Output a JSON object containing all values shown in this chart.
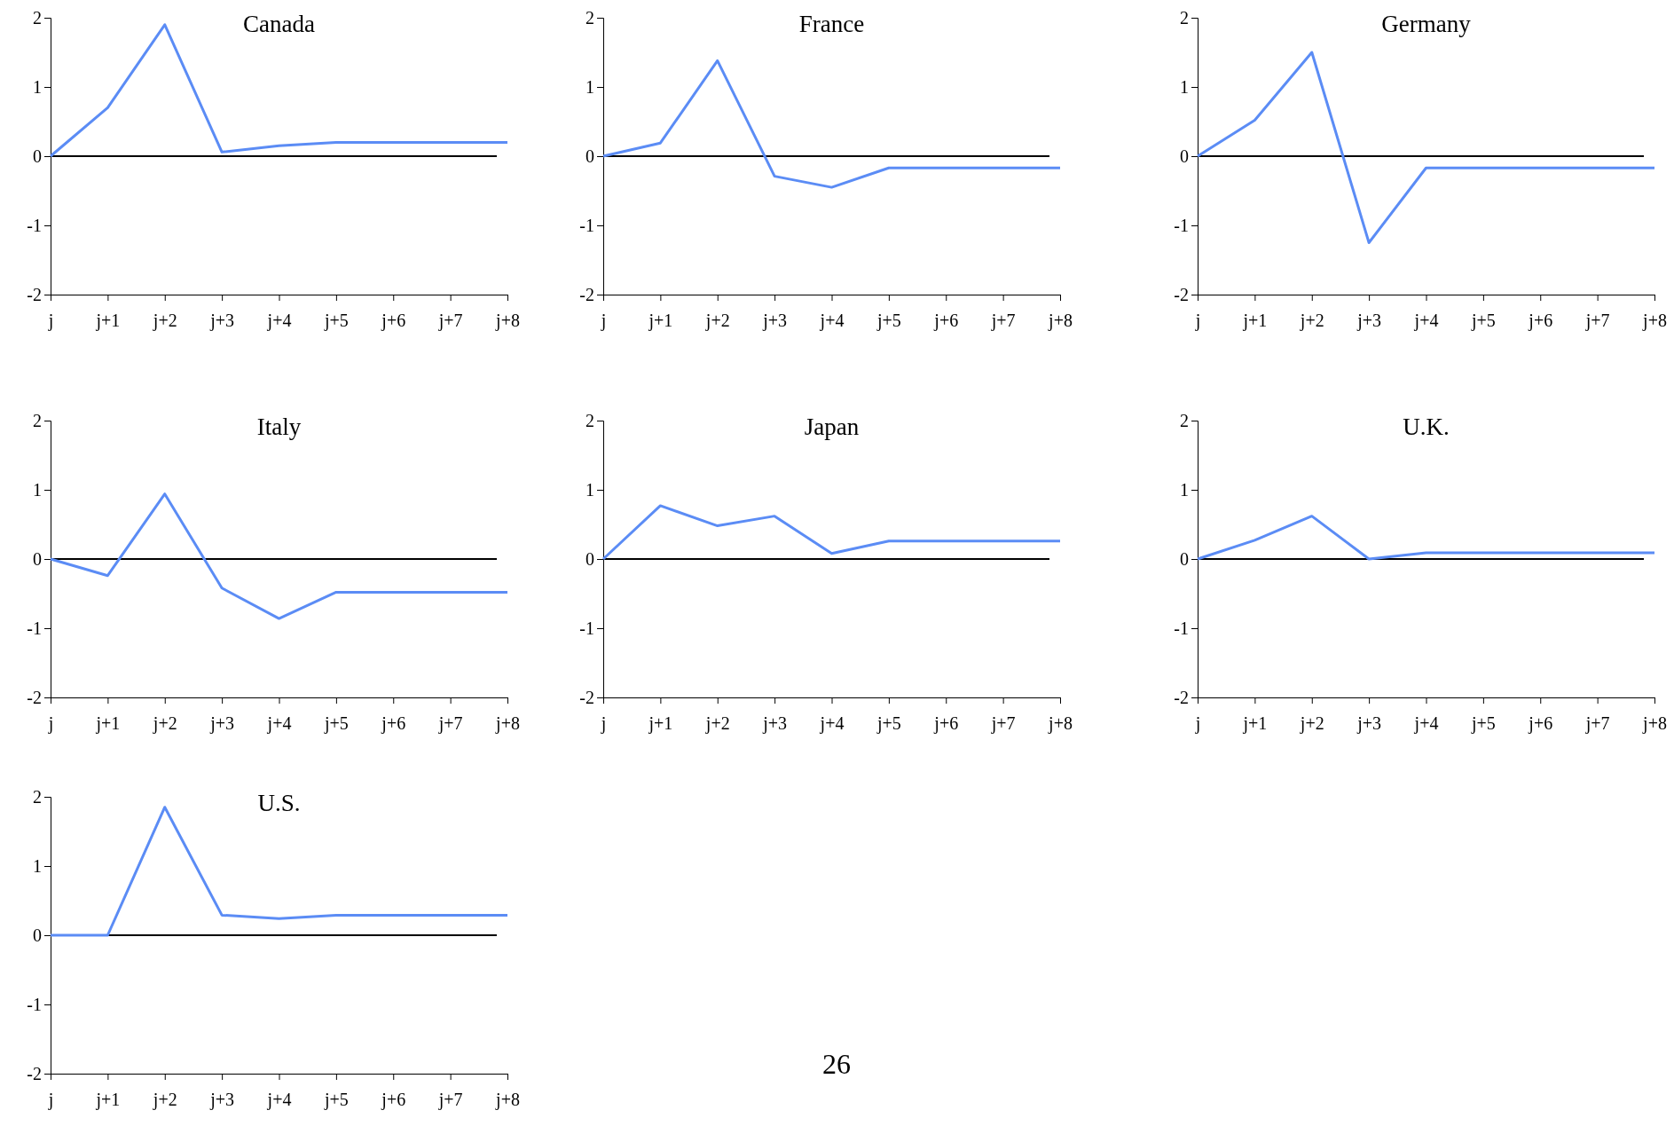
{
  "chart_data": [
    {
      "type": "line",
      "title": "Canada",
      "categories": [
        "j",
        "j+1",
        "j+2",
        "j+3",
        "j+4",
        "j+5",
        "j+6",
        "j+7",
        "j+8"
      ],
      "values": [
        0,
        0.7,
        1.9,
        0.06,
        0.15,
        0.2,
        0.2,
        0.2,
        0.2
      ],
      "color": "#5b8cf5",
      "ylim": [
        -2,
        2
      ],
      "yticks": [
        -2,
        -1,
        0,
        1,
        2
      ],
      "ref_lines": [
        {
          "axis": "y",
          "value": 0,
          "color": "#000000"
        }
      ],
      "grid": false
    },
    {
      "type": "line",
      "title": "France",
      "categories": [
        "j",
        "j+1",
        "j+2",
        "j+3",
        "j+4",
        "j+5",
        "j+6",
        "j+7",
        "j+8"
      ],
      "values": [
        0,
        0.19,
        1.38,
        -0.29,
        -0.45,
        -0.17,
        -0.17,
        -0.17,
        -0.17
      ],
      "color": "#5b8cf5",
      "ylim": [
        -2,
        2
      ],
      "yticks": [
        -2,
        -1,
        0,
        1,
        2
      ],
      "ref_lines": [
        {
          "axis": "y",
          "value": 0,
          "color": "#000000"
        }
      ],
      "grid": false
    },
    {
      "type": "line",
      "title": "Germany",
      "categories": [
        "j",
        "j+1",
        "j+2",
        "j+3",
        "j+4",
        "j+5",
        "j+6",
        "j+7",
        "j+8"
      ],
      "values": [
        0,
        0.52,
        1.5,
        -1.25,
        -0.17,
        -0.17,
        -0.17,
        -0.17,
        -0.17
      ],
      "color": "#5b8cf5",
      "ylim": [
        -2,
        2
      ],
      "yticks": [
        -2,
        -1,
        0,
        1,
        2
      ],
      "ref_lines": [
        {
          "axis": "y",
          "value": 0,
          "color": "#000000"
        }
      ],
      "grid": false
    },
    {
      "type": "line",
      "title": "Italy",
      "categories": [
        "j",
        "j+1",
        "j+2",
        "j+3",
        "j+4",
        "j+5",
        "j+6",
        "j+7",
        "j+8"
      ],
      "values": [
        0,
        -0.24,
        0.94,
        -0.42,
        -0.86,
        -0.48,
        -0.48,
        -0.48,
        -0.48
      ],
      "color": "#5b8cf5",
      "ylim": [
        -2,
        2
      ],
      "yticks": [
        -2,
        -1,
        0,
        1,
        2
      ],
      "ref_lines": [
        {
          "axis": "y",
          "value": 0,
          "color": "#000000"
        }
      ],
      "grid": false
    },
    {
      "type": "line",
      "title": "Japan",
      "categories": [
        "j",
        "j+1",
        "j+2",
        "j+3",
        "j+4",
        "j+5",
        "j+6",
        "j+7",
        "j+8"
      ],
      "values": [
        0,
        0.77,
        0.48,
        0.62,
        0.08,
        0.26,
        0.26,
        0.26,
        0.26
      ],
      "color": "#5b8cf5",
      "ylim": [
        -2,
        2
      ],
      "yticks": [
        -2,
        -1,
        0,
        1,
        2
      ],
      "ref_lines": [
        {
          "axis": "y",
          "value": 0,
          "color": "#000000"
        }
      ],
      "grid": false
    },
    {
      "type": "line",
      "title": "U.K.",
      "categories": [
        "j",
        "j+1",
        "j+2",
        "j+3",
        "j+4",
        "j+5",
        "j+6",
        "j+7",
        "j+8"
      ],
      "values": [
        0,
        0.27,
        0.62,
        0,
        0.09,
        0.09,
        0.09,
        0.09,
        0.09
      ],
      "color": "#5b8cf5",
      "ylim": [
        -2,
        2
      ],
      "yticks": [
        -2,
        -1,
        0,
        1,
        2
      ],
      "ref_lines": [
        {
          "axis": "y",
          "value": 0,
          "color": "#000000"
        }
      ],
      "grid": false
    },
    {
      "type": "line",
      "title": "U.S.",
      "categories": [
        "j",
        "j+1",
        "j+2",
        "j+3",
        "j+4",
        "j+5",
        "j+6",
        "j+7",
        "j+8"
      ],
      "values": [
        0,
        0,
        1.85,
        0.29,
        0.24,
        0.29,
        0.29,
        0.29,
        0.29
      ],
      "color": "#5b8cf5",
      "ylim": [
        -2,
        2
      ],
      "yticks": [
        -2,
        -1,
        0,
        1,
        2
      ],
      "ref_lines": [
        {
          "axis": "y",
          "value": 0,
          "color": "#000000"
        }
      ],
      "grid": false,
      "annotations": [
        "26"
      ]
    }
  ]
}
